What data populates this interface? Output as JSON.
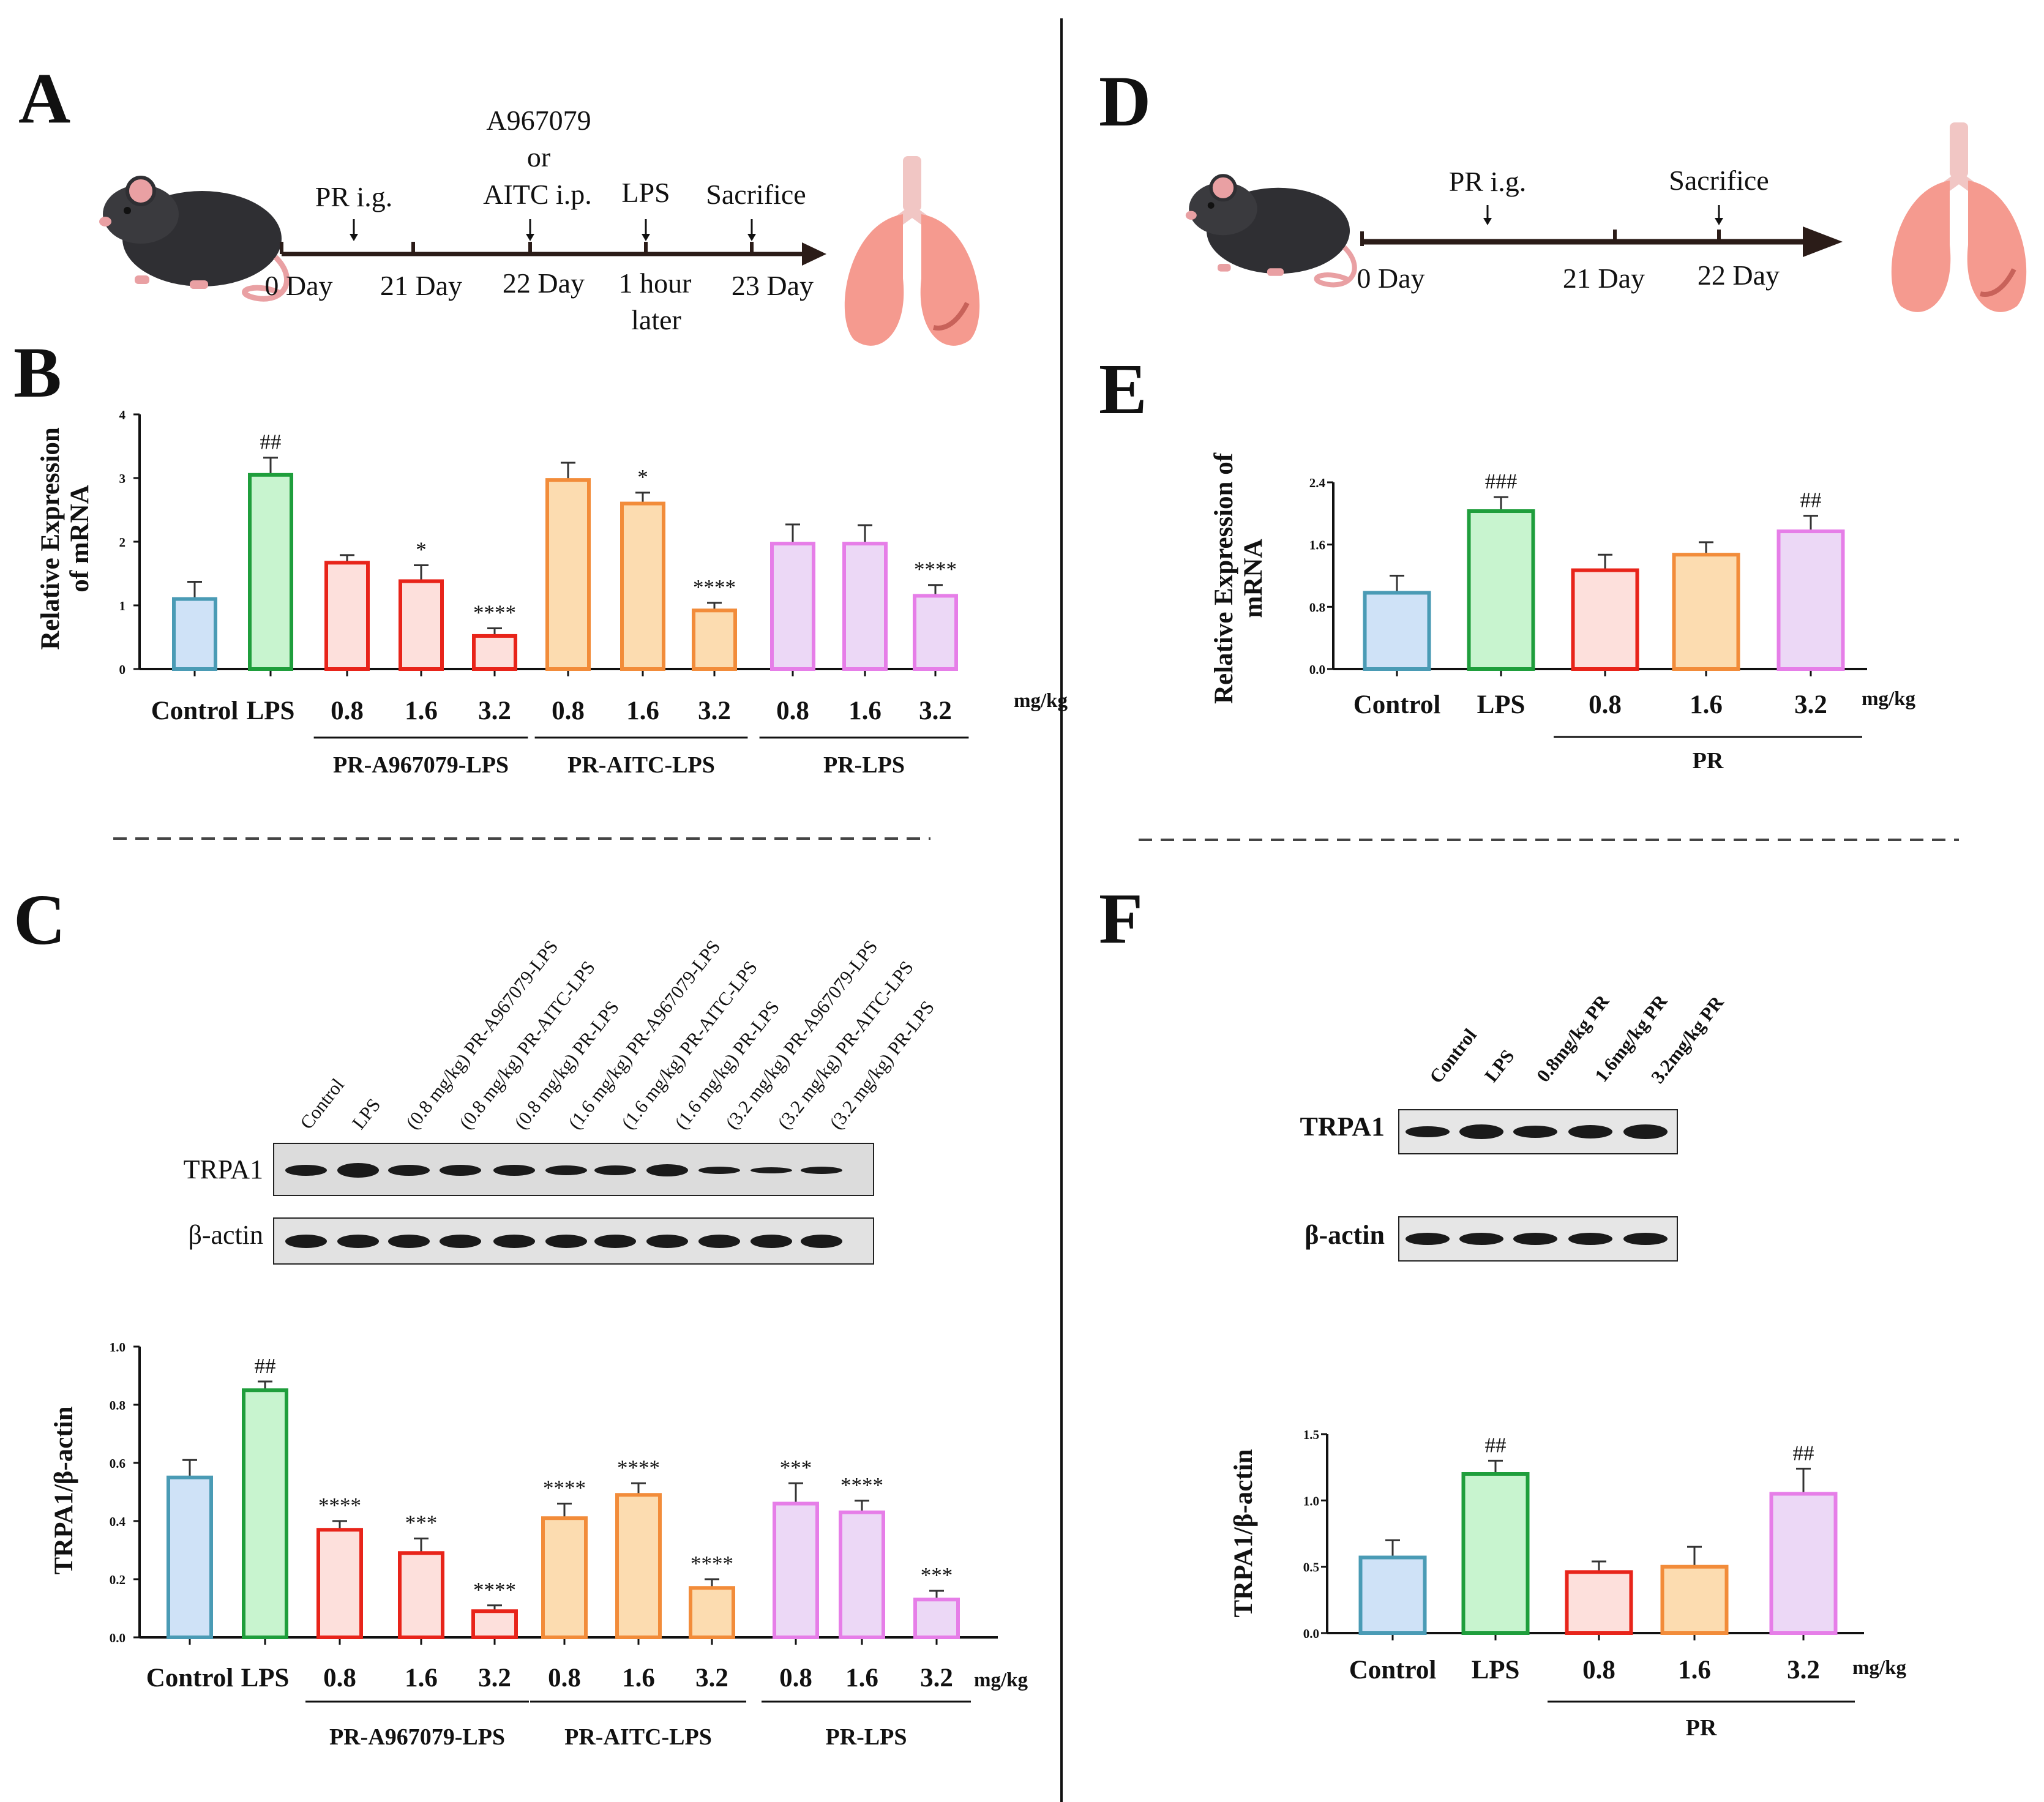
{
  "panels": {
    "A": "A",
    "B": "B",
    "C": "C",
    "D": "D",
    "E": "E",
    "F": "F"
  },
  "colors": {
    "Control": {
      "stroke": "#4a9bb5",
      "fill": "#cfe2f7"
    },
    "LPS": {
      "stroke": "#1f9e3c",
      "fill": "#c8f4cf"
    },
    "A967079": {
      "stroke": "#e8241a",
      "fill": "#fde0dc"
    },
    "AITC": {
      "stroke": "#f28c3a",
      "fill": "#fcdcb0"
    },
    "PRLPS": {
      "stroke": "#e67ee8",
      "fill": "#ecd8f6"
    }
  },
  "timeline_A": {
    "top": {
      "pr": "PR i.g.",
      "drug1": "A967079",
      "drug2": "or",
      "drug3": "AITC i.p.",
      "lps": "LPS",
      "sac": "Sacrifice"
    },
    "bottom": {
      "d0": "0 Day",
      "d21": "21 Day",
      "d22": "22 Day",
      "hour1": "1 hour",
      "hour2": "later",
      "d23": "23 Day"
    }
  },
  "timeline_D": {
    "top": {
      "pr": "PR i.g.",
      "sac": "Sacrifice"
    },
    "bottom": {
      "d0": "0 Day",
      "d21": "21 Day",
      "d22": "22 Day"
    }
  },
  "blot_C": {
    "lanes": [
      "Control",
      "LPS",
      "(0.8 mg/kg) PR-A967079-LPS",
      "(0.8 mg/kg) PR-AITC-LPS",
      "(0.8 mg/kg) PR-LPS",
      "(1.6 mg/kg) PR-A967079-LPS",
      "(1.6 mg/kg) PR-AITC-LPS",
      "(1.6 mg/kg) PR-LPS",
      "(3.2 mg/kg) PR-A967079-LPS",
      "(3.2 mg/kg) PR-AITC-LPS",
      "(3.2 mg/kg) PR-LPS"
    ],
    "rows": [
      "TRPA1",
      "β-actin"
    ]
  },
  "blot_F": {
    "lanes": [
      "Control",
      "LPS",
      "0.8mg/kg  PR",
      "1.6mg/kg  PR",
      "3.2mg/kg  PR"
    ],
    "rows": [
      "TRPA1",
      "β-actin"
    ]
  },
  "chart_data": [
    {
      "id": "B",
      "type": "bar",
      "ylabel": [
        "Relative Expression",
        "of mRNA"
      ],
      "ylim": [
        0,
        4
      ],
      "yticks": [
        0,
        1,
        2,
        3,
        4
      ],
      "tick_format": "int",
      "categories": [
        "Control",
        "LPS",
        "0.8",
        "1.6",
        "3.2",
        "0.8",
        "1.6",
        "3.2",
        "0.8",
        "1.6",
        "3.2"
      ],
      "values": [
        1.1,
        3.05,
        1.67,
        1.38,
        0.52,
        2.97,
        2.6,
        0.92,
        1.97,
        1.97,
        1.15
      ],
      "errors": [
        0.27,
        0.27,
        0.12,
        0.25,
        0.12,
        0.27,
        0.17,
        0.12,
        0.3,
        0.29,
        0.17
      ],
      "color_keys": [
        "Control",
        "LPS",
        "A967079",
        "A967079",
        "A967079",
        "AITC",
        "AITC",
        "AITC",
        "PRLPS",
        "PRLPS",
        "PRLPS"
      ],
      "annotations": [
        "",
        "##",
        "",
        "*",
        "****",
        "",
        "*",
        "****",
        "",
        "",
        "****"
      ],
      "unit": "mg/kg",
      "groups": [
        {
          "label": "PR-A967079-LPS",
          "from": 2,
          "to": 4
        },
        {
          "label": "PR-AITC-LPS",
          "from": 5,
          "to": 7
        },
        {
          "label": "PR-LPS",
          "from": 8,
          "to": 10
        }
      ]
    },
    {
      "id": "C",
      "type": "bar",
      "ylabel": [
        "TRPA1/β-actin"
      ],
      "ylim": [
        0,
        1.0
      ],
      "yticks": [
        0,
        0.2,
        0.4,
        0.6,
        0.8,
        1.0
      ],
      "tick_format": "fixed1",
      "categories": [
        "Control",
        "LPS",
        "0.8",
        "1.6",
        "3.2",
        "0.8",
        "1.6",
        "3.2",
        "0.8",
        "1.6",
        "3.2"
      ],
      "values": [
        0.55,
        0.85,
        0.37,
        0.29,
        0.09,
        0.41,
        0.49,
        0.17,
        0.46,
        0.43,
        0.13
      ],
      "errors": [
        0.06,
        0.03,
        0.03,
        0.05,
        0.02,
        0.05,
        0.04,
        0.03,
        0.07,
        0.04,
        0.03
      ],
      "color_keys": [
        "Control",
        "LPS",
        "A967079",
        "A967079",
        "A967079",
        "AITC",
        "AITC",
        "AITC",
        "PRLPS",
        "PRLPS",
        "PRLPS"
      ],
      "annotations": [
        "",
        "##",
        "****",
        "***",
        "****",
        "****",
        "****",
        "****",
        "***",
        "****",
        "***"
      ],
      "unit": "mg/kg",
      "groups": [
        {
          "label": "PR-A967079-LPS",
          "from": 2,
          "to": 4
        },
        {
          "label": "PR-AITC-LPS",
          "from": 5,
          "to": 7
        },
        {
          "label": "PR-LPS",
          "from": 8,
          "to": 10
        }
      ]
    },
    {
      "id": "E",
      "type": "bar",
      "ylabel": [
        "Relative Expression of",
        "mRNA"
      ],
      "ylim": [
        0,
        2.4
      ],
      "yticks": [
        0,
        0.8,
        1.6,
        2.4
      ],
      "tick_format": "fixed1",
      "categories": [
        "Control",
        "LPS",
        "0.8",
        "1.6",
        "3.2"
      ],
      "values": [
        0.98,
        2.03,
        1.27,
        1.47,
        1.77
      ],
      "errors": [
        0.22,
        0.18,
        0.2,
        0.16,
        0.2
      ],
      "color_keys": [
        "Control",
        "LPS",
        "A967079",
        "AITC",
        "PRLPS"
      ],
      "annotations": [
        "",
        "###",
        "",
        "",
        "##"
      ],
      "unit": "mg/kg",
      "groups": [
        {
          "label": "PR",
          "from": 2,
          "to": 4
        }
      ]
    },
    {
      "id": "F",
      "type": "bar",
      "ylabel": [
        "TRPA1/β-actin"
      ],
      "ylim": [
        0,
        1.5
      ],
      "yticks": [
        0,
        0.5,
        1.0,
        1.5
      ],
      "tick_format": "fixed1",
      "categories": [
        "Control",
        "LPS",
        "0.8",
        "1.6",
        "3.2"
      ],
      "values": [
        0.57,
        1.2,
        0.46,
        0.5,
        1.05
      ],
      "errors": [
        0.13,
        0.1,
        0.08,
        0.15,
        0.19
      ],
      "color_keys": [
        "Control",
        "LPS",
        "A967079",
        "AITC",
        "PRLPS"
      ],
      "annotations": [
        "",
        "##",
        "",
        "",
        "##"
      ],
      "unit": "mg/kg",
      "groups": [
        {
          "label": "PR",
          "from": 2,
          "to": 4
        }
      ]
    }
  ]
}
